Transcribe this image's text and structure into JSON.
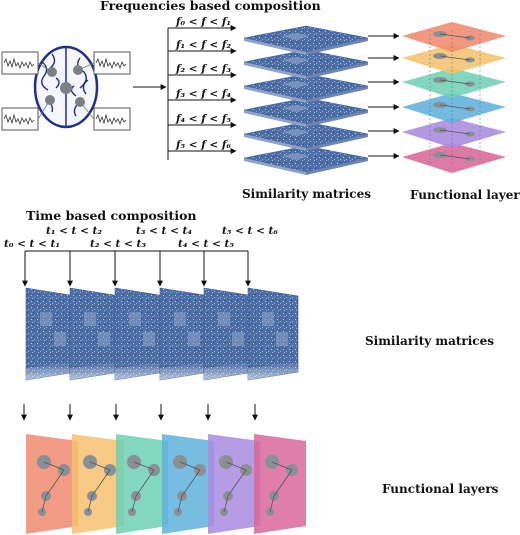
{
  "frequency_section": {
    "title": "Frequencies based composition",
    "ranges": [
      "f₀ < f < f₁",
      "f₁ < f < f₂",
      "f₂ < f < f₃",
      "f₃ < f < f₄",
      "f₄ < f < f₅",
      "f₅ < f < f₆"
    ],
    "similarity_label": "Similarity matrices",
    "layers_label": "Functional layers"
  },
  "time_section": {
    "title": "Time based composition",
    "ranges": [
      "t₀ < t < t₁",
      "t₁ < t < t₂",
      "t₂ < t < t₃",
      "t₃ < t < t₄",
      "t₄ < t < t₅",
      "t₅ < t < t₆"
    ],
    "similarity_label": "Similarity matrices",
    "layers_label": "Functional layers"
  },
  "colors": {
    "matrix_blue": "#4d6fa8",
    "layers": [
      "#f08a6e",
      "#f5c16e",
      "#6fd0b4",
      "#5fb0dc",
      "#a98be0",
      "#d9679a"
    ]
  }
}
